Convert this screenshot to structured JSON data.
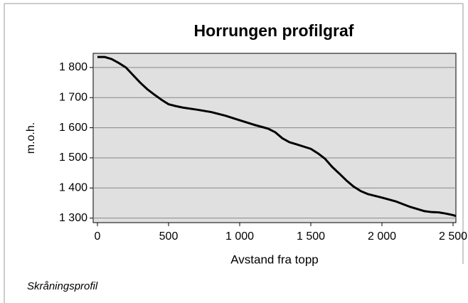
{
  "chart_data": {
    "type": "line",
    "title": "Horrungen profilgraf",
    "xlabel": "Avstand fra topp",
    "ylabel": "m.o.h.",
    "caption": "Skråningsprofil",
    "grid": true,
    "background": "#e0e0e0",
    "xlim": [
      -30,
      2520
    ],
    "ylim": [
      1285,
      1847
    ],
    "xticks": [
      0,
      500,
      {
        "value": 1000,
        "label": "1 000"
      },
      {
        "value": 1500,
        "label": "1 500"
      },
      {
        "value": 2000,
        "label": "2 000"
      },
      {
        "value": 2500,
        "label": "2 500"
      }
    ],
    "yticks": [
      {
        "value": 1300,
        "label": "1 300"
      },
      {
        "value": 1400,
        "label": "1 400"
      },
      {
        "value": 1500,
        "label": "1 500"
      },
      {
        "value": 1600,
        "label": "1 600"
      },
      {
        "value": 1700,
        "label": "1 700"
      },
      {
        "value": 1800,
        "label": "1 800"
      }
    ],
    "x": [
      0,
      50,
      100,
      150,
      200,
      250,
      300,
      350,
      400,
      450,
      500,
      550,
      600,
      700,
      800,
      900,
      1000,
      1100,
      1200,
      1250,
      1300,
      1350,
      1400,
      1500,
      1550,
      1600,
      1650,
      1700,
      1750,
      1800,
      1850,
      1900,
      2000,
      2100,
      2200,
      2300,
      2350,
      2400,
      2450,
      2500,
      2520
    ],
    "series": [
      {
        "color": "#000000",
        "values": [
          1835,
          1835,
          1828,
          1815,
          1800,
          1775,
          1750,
          1728,
          1710,
          1693,
          1678,
          1672,
          1667,
          1660,
          1652,
          1640,
          1625,
          1610,
          1597,
          1585,
          1565,
          1552,
          1545,
          1530,
          1515,
          1497,
          1470,
          1448,
          1425,
          1405,
          1390,
          1380,
          1368,
          1355,
          1337,
          1323,
          1320,
          1319,
          1315,
          1310,
          1307
        ]
      }
    ]
  }
}
